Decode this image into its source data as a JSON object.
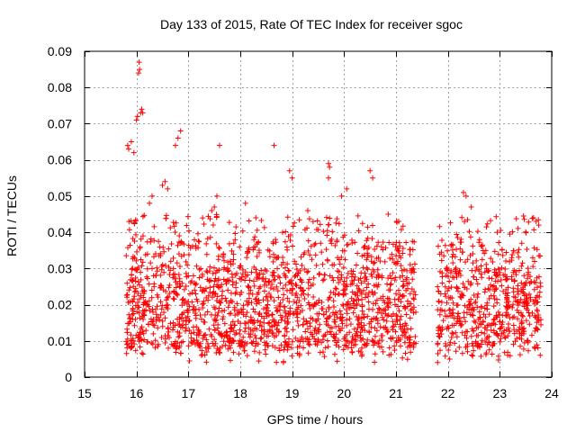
{
  "chart_data": {
    "type": "scatter",
    "title": "Day 133 of 2015, Rate Of TEC Index for receiver sgoc",
    "xlabel": "GPS time / hours",
    "ylabel": "ROTI / TECUs",
    "xlim": [
      15,
      24
    ],
    "ylim": [
      0,
      0.09
    ],
    "x_ticks": [
      "15",
      "16",
      "17",
      "18",
      "19",
      "20",
      "21",
      "22",
      "23",
      "24"
    ],
    "y_ticks": [
      "0",
      "0.01",
      "0.02",
      "0.03",
      "0.04",
      "0.05",
      "0.06",
      "0.07",
      "0.08",
      "0.09"
    ],
    "grid": true,
    "marker": "+",
    "color": "#ff0000",
    "data_segments": [
      {
        "x_start": 15.8,
        "x_end": 21.4
      },
      {
        "x_start": 21.8,
        "x_end": 23.8
      }
    ],
    "typical_range": [
      0.005,
      0.045
    ],
    "max_point": {
      "x": 16.05,
      "y": 0.087
    },
    "series": [
      {
        "name": "ROTI",
        "points": [
          [
            15.83,
            0.064
          ],
          [
            15.85,
            0.063
          ],
          [
            15.9,
            0.065
          ],
          [
            15.95,
            0.062
          ],
          [
            16.0,
            0.071
          ],
          [
            16.02,
            0.072
          ],
          [
            16.04,
            0.084
          ],
          [
            16.05,
            0.087
          ],
          [
            16.06,
            0.085
          ],
          [
            16.08,
            0.073
          ],
          [
            16.1,
            0.074
          ],
          [
            16.12,
            0.073
          ],
          [
            16.75,
            0.064
          ],
          [
            16.8,
            0.066
          ],
          [
            16.85,
            0.068
          ],
          [
            17.6,
            0.064
          ],
          [
            18.65,
            0.064
          ],
          [
            19.7,
            0.059
          ],
          [
            19.72,
            0.058
          ],
          [
            19.7,
            0.055
          ],
          [
            18.95,
            0.057
          ],
          [
            19.0,
            0.055
          ],
          [
            20.5,
            0.057
          ],
          [
            20.55,
            0.055
          ],
          [
            22.3,
            0.051
          ],
          [
            22.35,
            0.05
          ],
          [
            22.45,
            0.047
          ],
          [
            16.5,
            0.053
          ],
          [
            16.55,
            0.054
          ],
          [
            16.6,
            0.052
          ],
          [
            17.45,
            0.046
          ],
          [
            17.5,
            0.047
          ],
          [
            17.55,
            0.05
          ],
          [
            18.1,
            0.048
          ],
          [
            18.3,
            0.044
          ],
          [
            19.95,
            0.05
          ],
          [
            20.05,
            0.052
          ],
          [
            20.85,
            0.045
          ],
          [
            22.95,
            0.04
          ],
          [
            23.65,
            0.044
          ],
          [
            23.7,
            0.043
          ],
          [
            23.75,
            0.042
          ],
          [
            16.25,
            0.048
          ],
          [
            16.3,
            0.05
          ],
          [
            19.3,
            0.046
          ]
        ]
      }
    ]
  }
}
